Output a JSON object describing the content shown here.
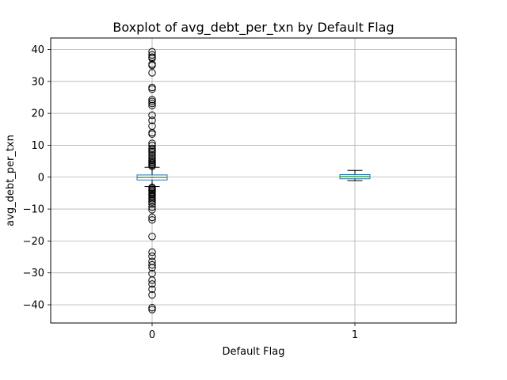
{
  "chart_data": {
    "type": "box",
    "title": "Boxplot of avg_debt_per_txn by Default Flag",
    "xlabel": "Default Flag",
    "ylabel": "avg_debt_per_txn",
    "categories": [
      "0",
      "1"
    ],
    "ylim": [
      -45.7,
      43.6
    ],
    "yticks": [
      -40,
      -30,
      -20,
      -10,
      0,
      10,
      20,
      30,
      40
    ],
    "grid": true,
    "box_color": "#1f77b4",
    "median_color": "#2ca02c",
    "series": [
      {
        "category": "0",
        "q1": -0.9,
        "median": -0.1,
        "q3": 0.7,
        "whisker_low": -2.9,
        "whisker_high": 3.1,
        "outliers": [
          39.3,
          38.3,
          37.6,
          37.2,
          35.4,
          35.0,
          32.7,
          28.1,
          27.6,
          24.3,
          23.7,
          23.1,
          22.4,
          19.4,
          17.8,
          16.0,
          13.9,
          13.5,
          10.6,
          9.9,
          9.0,
          8.6,
          8.1,
          7.6,
          6.8,
          6.2,
          5.7,
          5.3,
          4.9,
          4.5,
          4.1,
          3.8,
          3.4,
          -3.2,
          -3.5,
          -3.9,
          -4.2,
          -4.6,
          -5.0,
          -5.4,
          -5.8,
          -6.2,
          -6.7,
          -7.2,
          -7.8,
          -8.4,
          -9.4,
          -10.2,
          -12.6,
          -13.4,
          -18.6,
          -23.5,
          -24.8,
          -26.4,
          -27.5,
          -28.4,
          -30.2,
          -32.3,
          -33.5,
          -35.1,
          -36.9,
          -40.9,
          -41.5
        ]
      },
      {
        "category": "1",
        "q1": -0.5,
        "median": 0.2,
        "q3": 0.8,
        "whisker_low": -1.1,
        "whisker_high": 2.1,
        "outliers": []
      }
    ]
  }
}
